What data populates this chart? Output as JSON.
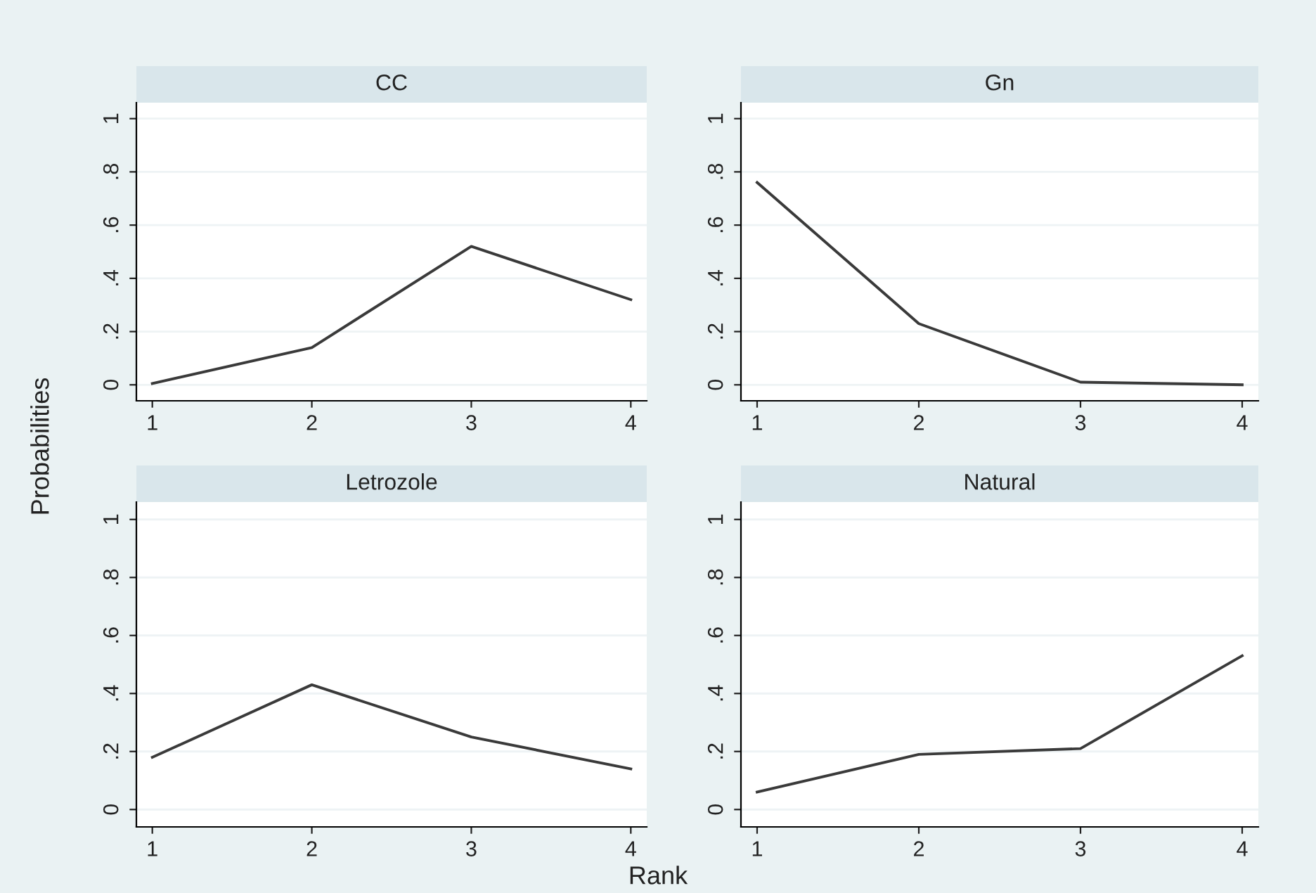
{
  "chart_data": [
    {
      "type": "line",
      "title": "CC",
      "ylabel": "Probabilities",
      "x": [
        1,
        2,
        3,
        4
      ],
      "series": [
        {
          "color": "#3a3a3a",
          "values": [
            0.005,
            0.14,
            0.52,
            0.32
          ]
        }
      ],
      "xlim": [
        0.9,
        4.1
      ],
      "xticks": [
        1,
        2,
        3,
        4
      ],
      "ylim": [
        -0.06,
        1.06
      ],
      "yticks": [
        {
          "value": 0,
          "label": "0"
        },
        {
          "value": 0.2,
          "label": ".2"
        },
        {
          "value": 0.4,
          "label": ".4"
        },
        {
          "value": 0.6,
          "label": ".6"
        },
        {
          "value": 0.8,
          "label": ".8"
        },
        {
          "value": 1,
          "label": "1"
        }
      ],
      "grid": "y"
    },
    {
      "type": "line",
      "title": "Gn",
      "x": [
        1,
        2,
        3,
        4
      ],
      "series": [
        {
          "color": "#3a3a3a",
          "values": [
            0.76,
            0.23,
            0.01,
            0.0
          ]
        }
      ],
      "xlim": [
        0.9,
        4.1
      ],
      "xticks": [
        1,
        2,
        3,
        4
      ],
      "ylim": [
        -0.06,
        1.06
      ],
      "yticks": [
        {
          "value": 0,
          "label": "0"
        },
        {
          "value": 0.2,
          "label": ".2"
        },
        {
          "value": 0.4,
          "label": ".4"
        },
        {
          "value": 0.6,
          "label": ".6"
        },
        {
          "value": 0.8,
          "label": ".8"
        },
        {
          "value": 1,
          "label": "1"
        }
      ],
      "grid": "y"
    },
    {
      "type": "line",
      "title": "Letrozole",
      "x": [
        1,
        2,
        3,
        4
      ],
      "series": [
        {
          "color": "#3a3a3a",
          "values": [
            0.18,
            0.43,
            0.25,
            0.14
          ]
        }
      ],
      "xlim": [
        0.9,
        4.1
      ],
      "xticks": [
        1,
        2,
        3,
        4
      ],
      "ylim": [
        -0.06,
        1.06
      ],
      "yticks": [
        {
          "value": 0,
          "label": "0"
        },
        {
          "value": 0.2,
          "label": ".2"
        },
        {
          "value": 0.4,
          "label": ".4"
        },
        {
          "value": 0.6,
          "label": ".6"
        },
        {
          "value": 0.8,
          "label": ".8"
        },
        {
          "value": 1,
          "label": "1"
        }
      ],
      "grid": "y"
    },
    {
      "type": "line",
      "title": "Natural",
      "xlabel": "Rank",
      "x": [
        1,
        2,
        3,
        4
      ],
      "series": [
        {
          "color": "#3a3a3a",
          "values": [
            0.06,
            0.19,
            0.21,
            0.53
          ]
        }
      ],
      "xlim": [
        0.9,
        4.1
      ],
      "xticks": [
        1,
        2,
        3,
        4
      ],
      "ylim": [
        -0.06,
        1.06
      ],
      "yticks": [
        {
          "value": 0,
          "label": "0"
        },
        {
          "value": 0.2,
          "label": ".2"
        },
        {
          "value": 0.4,
          "label": ".4"
        },
        {
          "value": 0.6,
          "label": ".6"
        },
        {
          "value": 0.8,
          "label": ".8"
        },
        {
          "value": 1,
          "label": "1"
        }
      ],
      "grid": "y"
    }
  ]
}
